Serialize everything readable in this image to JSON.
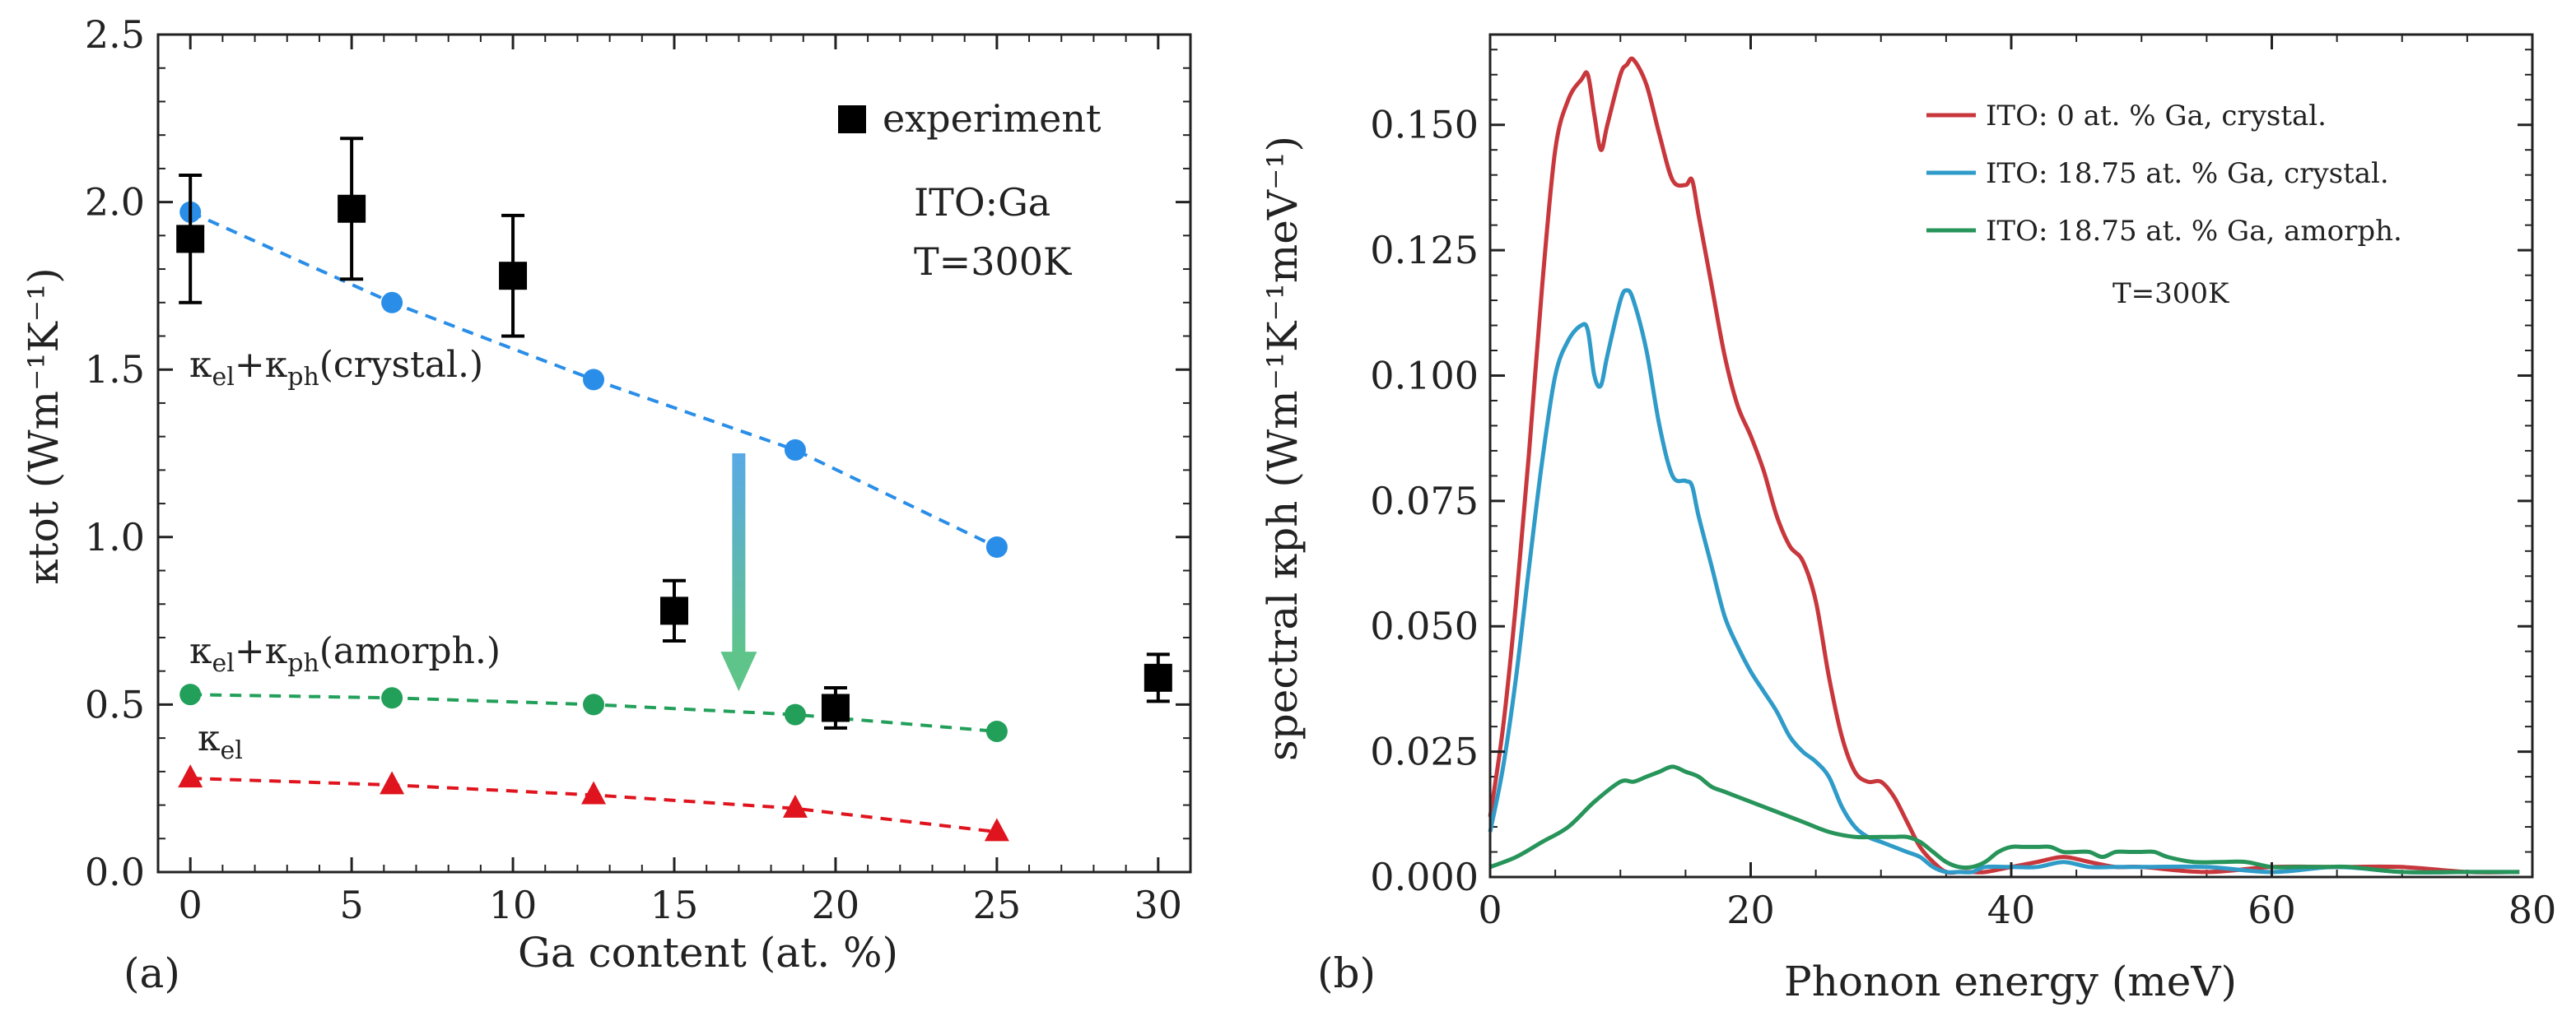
{
  "chart_data": [
    {
      "panel_label": "(a)",
      "type": "scatter",
      "xlabel": "Ga content (at. %)",
      "ylabel": "κtot (Wm⁻¹K⁻¹)",
      "xlim": [
        -1,
        31
      ],
      "ylim": [
        0,
        2.5
      ],
      "xticks": [
        "0",
        "5",
        "10",
        "15",
        "20",
        "25",
        "30"
      ],
      "yticks": [
        "0.0",
        "0.5",
        "1.0",
        "1.5",
        "2.0",
        "2.5"
      ],
      "annotations": [
        "ITO:Ga",
        "T=300K"
      ],
      "legend": {
        "position": "top-right",
        "label": "experiment"
      },
      "series": [
        {
          "name": "experiment",
          "marker": "square",
          "color": "#000000",
          "x": [
            0,
            5,
            10,
            15,
            20,
            30
          ],
          "y": [
            1.89,
            1.98,
            1.78,
            0.78,
            0.49,
            0.58
          ],
          "yerr": [
            0.19,
            0.21,
            0.18,
            0.09,
            0.06,
            0.07
          ]
        },
        {
          "name": "κel+κph (crystal.)",
          "label_main": "κ",
          "label_subs": [
            "el",
            "ph"
          ],
          "label_suffix": "(crystal.)",
          "marker": "circle",
          "color": "#2a8ee8",
          "x": [
            0,
            6.25,
            12.5,
            18.75,
            25
          ],
          "y": [
            1.97,
            1.7,
            1.47,
            1.26,
            0.97
          ]
        },
        {
          "name": "κel+κph (amorph.)",
          "label_main": "κ",
          "label_subs": [
            "el",
            "ph"
          ],
          "label_suffix": "(amorph.)",
          "marker": "circle",
          "color": "#22a05a",
          "x": [
            0,
            6.25,
            12.5,
            18.75,
            25
          ],
          "y": [
            0.53,
            0.52,
            0.5,
            0.47,
            0.42
          ]
        },
        {
          "name": "κel",
          "label_main": "κ",
          "label_subs": [
            "el"
          ],
          "marker": "triangle",
          "color": "#e0141e",
          "x": [
            0,
            6.25,
            12.5,
            18.75,
            25
          ],
          "y": [
            0.28,
            0.26,
            0.23,
            0.19,
            0.12
          ]
        }
      ],
      "arrow": {
        "x": 17,
        "y_from": 1.25,
        "y_to": 0.54
      }
    },
    {
      "panel_label": "(b)",
      "type": "line",
      "xlabel": "Phonon energy (meV)",
      "ylabel": "spectral κph (Wm⁻¹K⁻¹meV⁻¹)",
      "xlim": [
        0,
        80
      ],
      "ylim": [
        0,
        0.168
      ],
      "xticks": [
        "0",
        "20",
        "40",
        "60",
        "80"
      ],
      "yticks": [
        "0.000",
        "0.025",
        "0.050",
        "0.075",
        "0.100",
        "0.125",
        "0.150"
      ],
      "annotation": "T=300K",
      "legend_position": "top-right",
      "series": [
        {
          "name": "ITO: 0 at. % Ga, crystal.",
          "color": "#c8373c",
          "x": [
            0,
            1,
            2,
            3,
            4,
            5,
            6,
            7,
            7.5,
            8,
            8.5,
            9,
            10,
            10.5,
            11,
            12,
            13,
            14,
            15,
            15.5,
            16,
            17,
            18,
            19,
            20,
            21,
            22,
            23,
            24,
            25,
            26,
            27,
            28,
            29,
            30,
            31,
            32,
            33,
            34,
            35,
            36,
            37,
            38,
            40,
            42,
            44,
            46,
            48,
            50,
            55,
            60,
            65,
            70,
            75,
            79
          ],
          "y": [
            0.012,
            0.03,
            0.055,
            0.085,
            0.118,
            0.145,
            0.155,
            0.159,
            0.16,
            0.152,
            0.145,
            0.15,
            0.16,
            0.162,
            0.163,
            0.158,
            0.148,
            0.139,
            0.138,
            0.139,
            0.132,
            0.118,
            0.104,
            0.094,
            0.088,
            0.081,
            0.072,
            0.066,
            0.063,
            0.055,
            0.04,
            0.028,
            0.021,
            0.019,
            0.019,
            0.016,
            0.011,
            0.006,
            0.003,
            0.001,
            0.001,
            0.001,
            0.001,
            0.002,
            0.003,
            0.004,
            0.003,
            0.002,
            0.002,
            0.001,
            0.002,
            0.002,
            0.002,
            0.001,
            0.001
          ]
        },
        {
          "name": "ITO: 18.75 at. % Ga, crystal.",
          "color": "#2f9bc8",
          "x": [
            0,
            1,
            2,
            3,
            4,
            5,
            6,
            7,
            7.5,
            8,
            8.5,
            9,
            10,
            10.5,
            11,
            12,
            13,
            14,
            15,
            15.5,
            16,
            17,
            18,
            19,
            20,
            21,
            22,
            23,
            24,
            25,
            26,
            27,
            28,
            29,
            30,
            31,
            32,
            33,
            34,
            35,
            36,
            37,
            38,
            40,
            42,
            44,
            46,
            48,
            50,
            55,
            60,
            65,
            70,
            75,
            79
          ],
          "y": [
            0.009,
            0.022,
            0.04,
            0.062,
            0.083,
            0.1,
            0.107,
            0.11,
            0.109,
            0.1,
            0.098,
            0.104,
            0.115,
            0.117,
            0.115,
            0.105,
            0.09,
            0.08,
            0.079,
            0.078,
            0.072,
            0.062,
            0.052,
            0.046,
            0.041,
            0.037,
            0.033,
            0.028,
            0.025,
            0.023,
            0.02,
            0.014,
            0.01,
            0.008,
            0.007,
            0.006,
            0.005,
            0.004,
            0.002,
            0.001,
            0.001,
            0.001,
            0.002,
            0.002,
            0.002,
            0.003,
            0.002,
            0.002,
            0.002,
            0.002,
            0.001,
            0.002,
            0.001,
            0.001,
            0.001
          ]
        },
        {
          "name": "ITO: 18.75 at. % Ga, amorph.",
          "color": "#27945a",
          "x": [
            0,
            2,
            4,
            6,
            8,
            10,
            11,
            12,
            13,
            14,
            15,
            16,
            17,
            18,
            20,
            22,
            24,
            26,
            28,
            30,
            31,
            32,
            33,
            34,
            35,
            36,
            37,
            38,
            39,
            40,
            41,
            42,
            43,
            44,
            45,
            46,
            47,
            48,
            49,
            50,
            51,
            52,
            54,
            56,
            58,
            60,
            62,
            64,
            66,
            70,
            75,
            79
          ],
          "y": [
            0.002,
            0.004,
            0.007,
            0.01,
            0.015,
            0.019,
            0.019,
            0.02,
            0.021,
            0.022,
            0.021,
            0.02,
            0.018,
            0.017,
            0.015,
            0.013,
            0.011,
            0.009,
            0.008,
            0.008,
            0.008,
            0.008,
            0.007,
            0.005,
            0.003,
            0.002,
            0.002,
            0.003,
            0.005,
            0.006,
            0.006,
            0.006,
            0.006,
            0.005,
            0.005,
            0.005,
            0.004,
            0.005,
            0.005,
            0.005,
            0.005,
            0.004,
            0.003,
            0.003,
            0.003,
            0.002,
            0.002,
            0.002,
            0.002,
            0.001,
            0.001,
            0.001
          ]
        }
      ]
    }
  ]
}
